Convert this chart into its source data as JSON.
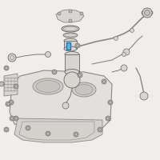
{
  "bg_color": "#f0eeea",
  "line_color": "#666666",
  "line_color2": "#888888",
  "highlight_color": "#5bb8e8",
  "figsize": [
    2.0,
    2.0
  ],
  "dpi": 100,
  "tank_color": "#e2e0dc",
  "tank_edge": "#777777",
  "part_color": "#d8d5d0",
  "bolt_color": "#c0bdb8"
}
